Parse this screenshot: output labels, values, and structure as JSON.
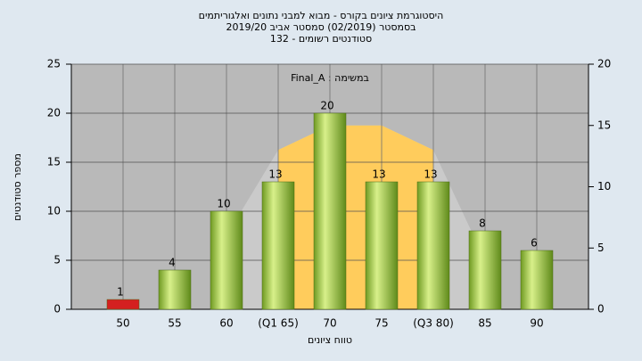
{
  "chart_data": {
    "type": "bar",
    "title": [
      "היסטוגרמת ציונים בקורס - מבוא למבני נתונים ואלגוריתמים",
      "בסמסטר (02/2019)  סמסטר אביב 2019/20",
      "סטודנטים רשומים - 132"
    ],
    "annotation": "Final_A : במשימה",
    "xlabel": "טווח ציונים",
    "ylabel": "מספר סטודנטים",
    "categories": [
      "50",
      "55",
      "60",
      "(Q1 65)",
      "70",
      "75",
      "(Q3 80)",
      "85",
      "90"
    ],
    "values": [
      1,
      4,
      10,
      13,
      20,
      13,
      13,
      8,
      6
    ],
    "colors": [
      "#d42020",
      "#8fbc3a",
      "#8fbc3a",
      "#8fbc3a",
      "#8fbc3a",
      "#8fbc3a",
      "#8fbc3a",
      "#8fbc3a",
      "#8fbc3a"
    ],
    "areas": [
      {
        "color": "#cacaca",
        "axis": "y2",
        "values": [
          null,
          null,
          6,
          13,
          15,
          15,
          13,
          4,
          null
        ]
      },
      {
        "color": "#ffcc5c",
        "axis": "y2",
        "values": [
          null,
          null,
          null,
          13,
          15,
          15,
          13,
          null,
          null
        ]
      }
    ],
    "ylim": [
      0,
      25
    ],
    "yticks": [
      0,
      5,
      10,
      15,
      20,
      25
    ],
    "y2lim": [
      0,
      20
    ],
    "y2ticks": [
      0,
      5,
      10,
      15,
      20
    ],
    "grid": true
  }
}
